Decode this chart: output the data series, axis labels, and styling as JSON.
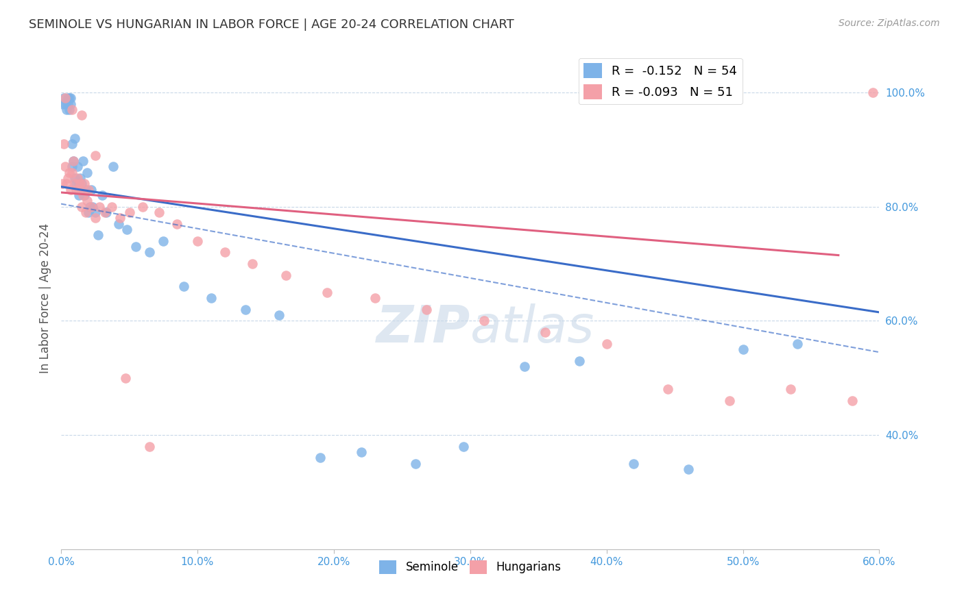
{
  "title": "SEMINOLE VS HUNGARIAN IN LABOR FORCE | AGE 20-24 CORRELATION CHART",
  "source": "Source: ZipAtlas.com",
  "ylabel": "In Labor Force | Age 20-24",
  "xlim": [
    0.0,
    0.6
  ],
  "ylim": [
    0.2,
    1.08
  ],
  "xtick_labels": [
    "0.0%",
    "10.0%",
    "20.0%",
    "30.0%",
    "40.0%",
    "50.0%",
    "60.0%"
  ],
  "xtick_vals": [
    0.0,
    0.1,
    0.2,
    0.3,
    0.4,
    0.5,
    0.6
  ],
  "ytick_labels": [
    "100.0%",
    "80.0%",
    "60.0%",
    "40.0%"
  ],
  "ytick_vals": [
    1.0,
    0.8,
    0.6,
    0.4
  ],
  "seminole_color": "#7EB3E8",
  "hungarian_color": "#F4A0A8",
  "trend_seminole_color": "#3A6CC8",
  "trend_hungarian_color": "#E06080",
  "legend_r_seminole": "R =  -0.152",
  "legend_n_seminole": "N = 54",
  "legend_r_hungarian": "R = -0.093",
  "legend_n_hungarian": "N = 51",
  "background_color": "#FFFFFF",
  "grid_color": "#C8D8E8",
  "watermark_color": "#C8D8E8",
  "title_color": "#333333",
  "axis_label_color": "#555555",
  "tick_label_color": "#4499DD",
  "seminole_x": [
    0.001,
    0.002,
    0.003,
    0.004,
    0.005,
    0.005,
    0.006,
    0.006,
    0.007,
    0.007,
    0.008,
    0.008,
    0.009,
    0.01,
    0.01,
    0.011,
    0.012,
    0.013,
    0.013,
    0.014,
    0.015,
    0.015,
    0.016,
    0.017,
    0.018,
    0.019,
    0.02,
    0.021,
    0.022,
    0.023,
    0.025,
    0.027,
    0.03,
    0.033,
    0.038,
    0.042,
    0.048,
    0.055,
    0.065,
    0.075,
    0.09,
    0.11,
    0.135,
    0.16,
    0.19,
    0.22,
    0.26,
    0.295,
    0.34,
    0.38,
    0.42,
    0.46,
    0.5,
    0.54
  ],
  "seminole_y": [
    0.98,
    0.99,
    0.98,
    0.97,
    0.99,
    0.98,
    0.99,
    0.97,
    0.99,
    0.98,
    0.91,
    0.87,
    0.88,
    0.92,
    0.85,
    0.84,
    0.87,
    0.84,
    0.82,
    0.85,
    0.83,
    0.84,
    0.88,
    0.82,
    0.83,
    0.86,
    0.79,
    0.8,
    0.83,
    0.8,
    0.79,
    0.75,
    0.82,
    0.79,
    0.87,
    0.77,
    0.76,
    0.73,
    0.72,
    0.74,
    0.66,
    0.64,
    0.62,
    0.61,
    0.36,
    0.37,
    0.35,
    0.38,
    0.52,
    0.53,
    0.35,
    0.34,
    0.55,
    0.56
  ],
  "hungarian_x": [
    0.001,
    0.002,
    0.003,
    0.004,
    0.005,
    0.006,
    0.007,
    0.008,
    0.009,
    0.01,
    0.011,
    0.012,
    0.013,
    0.014,
    0.015,
    0.016,
    0.017,
    0.018,
    0.019,
    0.02,
    0.022,
    0.025,
    0.028,
    0.032,
    0.037,
    0.043,
    0.05,
    0.06,
    0.072,
    0.085,
    0.1,
    0.12,
    0.14,
    0.165,
    0.195,
    0.23,
    0.268,
    0.31,
    0.355,
    0.4,
    0.445,
    0.49,
    0.535,
    0.58,
    0.595,
    0.003,
    0.008,
    0.015,
    0.025,
    0.047,
    0.065
  ],
  "hungarian_y": [
    0.84,
    0.91,
    0.87,
    0.84,
    0.85,
    0.86,
    0.83,
    0.86,
    0.88,
    0.84,
    0.83,
    0.85,
    0.83,
    0.84,
    0.8,
    0.82,
    0.84,
    0.79,
    0.81,
    0.83,
    0.8,
    0.78,
    0.8,
    0.79,
    0.8,
    0.78,
    0.79,
    0.8,
    0.79,
    0.77,
    0.74,
    0.72,
    0.7,
    0.68,
    0.65,
    0.64,
    0.62,
    0.6,
    0.58,
    0.56,
    0.48,
    0.46,
    0.48,
    0.46,
    1.0,
    0.99,
    0.97,
    0.96,
    0.89,
    0.5,
    0.38
  ],
  "sem_trend_x0": 0.0,
  "sem_trend_y0": 0.835,
  "sem_trend_x1": 0.6,
  "sem_trend_y1": 0.615,
  "hun_trend_x0": 0.0,
  "hun_trend_y0": 0.825,
  "hun_trend_x1": 0.57,
  "hun_trend_y1": 0.715,
  "dash_trend_x0": 0.0,
  "dash_trend_y0": 0.805,
  "dash_trend_x1": 0.6,
  "dash_trend_y1": 0.545
}
